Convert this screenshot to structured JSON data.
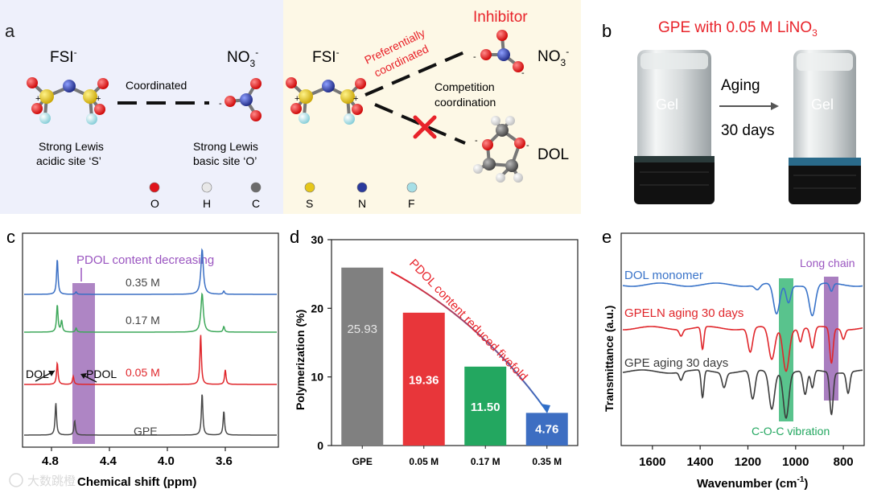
{
  "panel_a": {
    "letter": "a",
    "fsi_left": "FSI",
    "no3_left": "NO",
    "coordinated": "Coordinated",
    "lewis_acid_1": "Strong Lewis",
    "lewis_acid_2": "acidic site ‘S’",
    "lewis_base_1": "Strong Lewis",
    "lewis_base_2": "basic site ‘O’",
    "fsi_right": "FSI",
    "preferentially_1": "Preferentially",
    "preferentially_2": "coordinated",
    "inhibitor": "Inhibitor",
    "no3_right": "NO",
    "competition_1": "Competition",
    "competition_2": "coordination",
    "dol": "DOL",
    "legend": [
      {
        "label": "O",
        "color": "#e0141b"
      },
      {
        "label": "H",
        "color": "#e8e8e8"
      },
      {
        "label": "C",
        "color": "#6b6b6b"
      },
      {
        "label": "S",
        "color": "#e6c71a"
      },
      {
        "label": "N",
        "color": "#2a3a9c"
      },
      {
        "label": "F",
        "color": "#a6dfe6"
      }
    ],
    "colors": {
      "left_bg": "#eef0fb",
      "right_bg": "#fdf8e6",
      "red": "#e8232a"
    }
  },
  "panel_b": {
    "letter": "b",
    "title": "GPE with 0.05 M LiNO",
    "gel_left": "Gel",
    "gel_right": "Gel",
    "aging": "Aging",
    "days": "30 days"
  },
  "panel_c": {
    "letter": "c",
    "pdol_label": "PDOL content decreasing",
    "xlabel": "Chemical shift (ppm)",
    "ticks": [
      "4.8",
      "4.4",
      "4.0",
      "3.6"
    ],
    "dol_arrow": "DOL",
    "pdol_arrow": "PDOL",
    "traces": [
      {
        "label": "0.35 M",
        "color": "#3a6fc4"
      },
      {
        "label": "0.17 M",
        "color": "#3da85a"
      },
      {
        "label": "0.05 M",
        "color": "#e0262b"
      },
      {
        "label": "GPE",
        "color": "#4a4a4a"
      }
    ]
  },
  "panel_d": {
    "letter": "d",
    "annotation": "PDOL content reduced fivefold",
    "chart_data": {
      "type": "bar",
      "categories": [
        "GPE",
        "0.05 M",
        "0.17 M",
        "0.35 M"
      ],
      "values": [
        25.93,
        19.36,
        11.5,
        4.76
      ],
      "value_labels": [
        "25.93",
        "19.36",
        "11.50",
        "4.76"
      ],
      "colors": [
        "#808080",
        "#e8363a",
        "#23a760",
        "#3d6ec2"
      ],
      "ylabel": "Polymerization (%)",
      "ylim": [
        0,
        30
      ],
      "yticks": [
        "0",
        "10",
        "20",
        "30"
      ]
    }
  },
  "panel_e": {
    "letter": "e",
    "long_chain": "Long chain",
    "xlabel": "Wavenumber (cm",
    "ylabel": "Transmittance (a.u.)",
    "coc": "C-O-C vibration",
    "ticks": [
      "1600",
      "1400",
      "1200",
      "1000",
      "800"
    ],
    "traces": [
      {
        "label": "DOL monomer",
        "color": "#3a74c9"
      },
      {
        "label": "GPELN aging 30 days",
        "color": "#e0262b"
      },
      {
        "label": "GPE aging 30 days",
        "color": "#3c3c3c"
      }
    ]
  },
  "watermark": "大数跳橙"
}
